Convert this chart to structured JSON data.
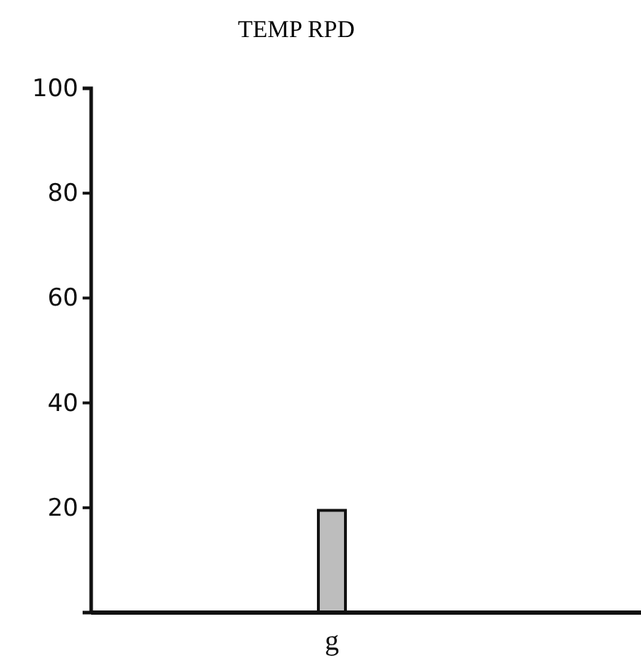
{
  "chart_data": {
    "type": "bar",
    "title": "TEMP RPD",
    "categories": [
      "g"
    ],
    "values": [
      19.5
    ],
    "color": "#bdbdbd",
    "ylim": [
      0,
      100
    ],
    "yticks": [
      20,
      40,
      60,
      80,
      100
    ],
    "grid": false
  }
}
